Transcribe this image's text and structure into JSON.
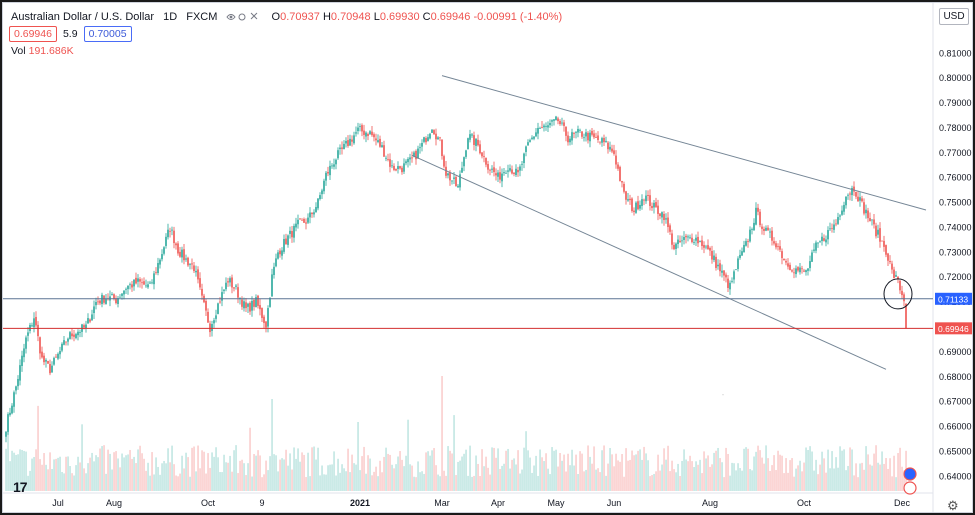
{
  "header": {
    "symbol": "Australian Dollar / U.S. Dollar",
    "interval": "1D",
    "source": "FXCM",
    "open_label": "O",
    "open": "0.70937",
    "high_label": "H",
    "high": "0.70948",
    "low_label": "L",
    "low": "0.69930",
    "close_label": "C",
    "close": "0.69946",
    "change": "-0.00991 (-1.40%)",
    "sell_price": "0.69946",
    "spread": "5.9",
    "buy_price": "0.70005"
  },
  "volume": {
    "label": "Vol",
    "value": "191.686K"
  },
  "currency_button": "USD",
  "colors": {
    "up": "#26a69a",
    "down": "#ef5350",
    "trendline": "#758696",
    "horizontal_blue": "#5b7393",
    "horizontal_red": "#d32f2f",
    "label_blue": "#2962ff"
  },
  "icons": [
    "eye-icon",
    "settings-icon",
    "remove-icon",
    "more-icon",
    "tradingview-logo-icon",
    "chart-settings-icon"
  ],
  "chart_data": {
    "type": "candlestick",
    "title": "Australian Dollar / U.S. Dollar",
    "ylim": [
      0.6365,
      0.8093
    ],
    "y_ticks": [
      "0.81000",
      "0.80000",
      "0.79000",
      "0.78000",
      "0.77000",
      "0.76000",
      "0.75000",
      "0.74000",
      "0.73000",
      "0.72000",
      "0.71000",
      "0.70000",
      "0.69000",
      "0.68000",
      "0.67000",
      "0.66000",
      "0.65000",
      "0.64000"
    ],
    "x_tick_labels": [
      "Jul",
      "Aug",
      "Oct",
      "9",
      "2021",
      "Mar",
      "Apr",
      "May",
      "Jun",
      "Aug",
      "Oct",
      "Dec"
    ],
    "x_tick_days": [
      26,
      54,
      101,
      128,
      177,
      218,
      246,
      275,
      304,
      352,
      399,
      448
    ],
    "total_days": 451,
    "anchors": [
      [
        0,
        0.66
      ],
      [
        5,
        0.676
      ],
      [
        10,
        0.695
      ],
      [
        14,
        0.704
      ],
      [
        18,
        0.687
      ],
      [
        22,
        0.683
      ],
      [
        27,
        0.69
      ],
      [
        31,
        0.696
      ],
      [
        35,
        0.698
      ],
      [
        40,
        0.7
      ],
      [
        45,
        0.71
      ],
      [
        50,
        0.712
      ],
      [
        55,
        0.711
      ],
      [
        60,
        0.716
      ],
      [
        66,
        0.718
      ],
      [
        72,
        0.716
      ],
      [
        78,
        0.73
      ],
      [
        82,
        0.74
      ],
      [
        86,
        0.731
      ],
      [
        90,
        0.727
      ],
      [
        94,
        0.724
      ],
      [
        98,
        0.711
      ],
      [
        102,
        0.7
      ],
      [
        106,
        0.709
      ],
      [
        111,
        0.719
      ],
      [
        115,
        0.715
      ],
      [
        120,
        0.707
      ],
      [
        125,
        0.71
      ],
      [
        130,
        0.701
      ],
      [
        133,
        0.72
      ],
      [
        136,
        0.73
      ],
      [
        141,
        0.736
      ],
      [
        146,
        0.741
      ],
      [
        151,
        0.743
      ],
      [
        156,
        0.75
      ],
      [
        160,
        0.761
      ],
      [
        165,
        0.768
      ],
      [
        170,
        0.773
      ],
      [
        176,
        0.779
      ],
      [
        182,
        0.778
      ],
      [
        188,
        0.772
      ],
      [
        193,
        0.764
      ],
      [
        198,
        0.764
      ],
      [
        203,
        0.767
      ],
      [
        208,
        0.773
      ],
      [
        213,
        0.781
      ],
      [
        217,
        0.774
      ],
      [
        220,
        0.762
      ],
      [
        226,
        0.756
      ],
      [
        231,
        0.777
      ],
      [
        236,
        0.773
      ],
      [
        241,
        0.765
      ],
      [
        246,
        0.76
      ],
      [
        251,
        0.765
      ],
      [
        256,
        0.761
      ],
      [
        261,
        0.773
      ],
      [
        266,
        0.78
      ],
      [
        270,
        0.78
      ],
      [
        276,
        0.783
      ],
      [
        281,
        0.776
      ],
      [
        287,
        0.778
      ],
      [
        293,
        0.776
      ],
      [
        299,
        0.774
      ],
      [
        304,
        0.77
      ],
      [
        309,
        0.753
      ],
      [
        314,
        0.747
      ],
      [
        319,
        0.753
      ],
      [
        324,
        0.748
      ],
      [
        329,
        0.745
      ],
      [
        334,
        0.732
      ],
      [
        339,
        0.735
      ],
      [
        344,
        0.736
      ],
      [
        349,
        0.733
      ],
      [
        354,
        0.727
      ],
      [
        359,
        0.72
      ],
      [
        362,
        0.716
      ],
      [
        366,
        0.726
      ],
      [
        370,
        0.733
      ],
      [
        375,
        0.746
      ],
      [
        380,
        0.738
      ],
      [
        385,
        0.734
      ],
      [
        390,
        0.726
      ],
      [
        395,
        0.723
      ],
      [
        400,
        0.722
      ],
      [
        405,
        0.732
      ],
      [
        410,
        0.737
      ],
      [
        415,
        0.742
      ],
      [
        420,
        0.753
      ],
      [
        424,
        0.756
      ],
      [
        428,
        0.749
      ],
      [
        432,
        0.743
      ],
      [
        436,
        0.737
      ],
      [
        440,
        0.731
      ],
      [
        443,
        0.722
      ],
      [
        446,
        0.718
      ],
      [
        448,
        0.713
      ],
      [
        450,
        0.7094
      ]
    ],
    "last_candle": {
      "open": 0.70937,
      "high": 0.70948,
      "low": 0.6993,
      "close": 0.69946
    },
    "volume_spikes": [
      [
        1,
        0.62
      ],
      [
        16,
        0.74
      ],
      [
        38,
        0.58
      ],
      [
        122,
        0.55
      ],
      [
        133,
        0.8
      ],
      [
        176,
        0.6
      ],
      [
        201,
        0.62
      ],
      [
        218,
        1.0
      ],
      [
        224,
        0.66
      ],
      [
        260,
        0.52
      ]
    ],
    "trendlines": [
      {
        "from": [
          218,
          0.801
        ],
        "to": [
          460,
          0.747
        ]
      },
      {
        "from": [
          203,
          0.769
        ],
        "to": [
          440,
          0.683
        ]
      }
    ],
    "horizontal_levels": [
      {
        "value": 0.71133,
        "label": "0.71133",
        "color": "blue"
      },
      {
        "value": 0.69946,
        "label": "0.69946",
        "color": "red"
      }
    ],
    "highlight_circle": {
      "day": 446,
      "value": 0.7133
    },
    "arrow_marker_day": 358,
    "arrow_marker_value": 0.672
  }
}
